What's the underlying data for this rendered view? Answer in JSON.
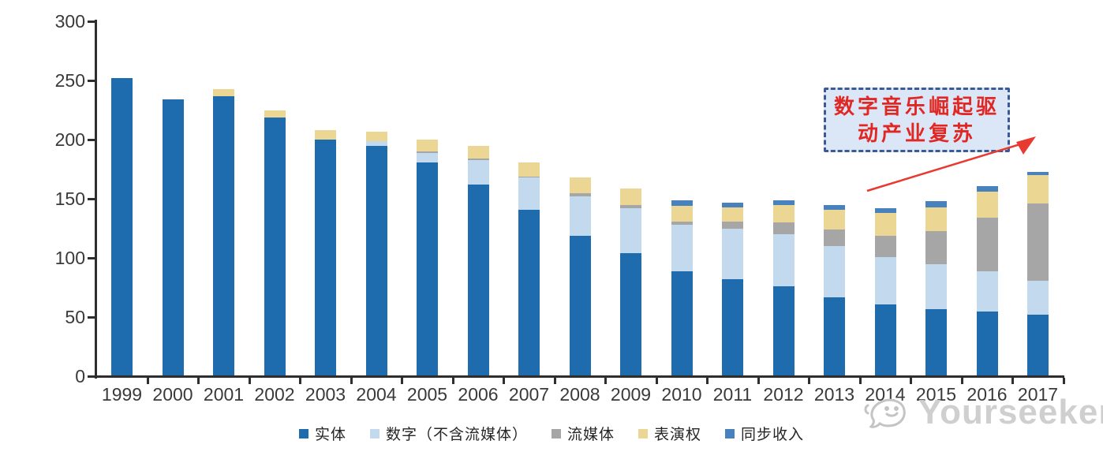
{
  "chart_data": {
    "type": "bar",
    "stacked": true,
    "title": "",
    "xlabel": "",
    "ylabel": "",
    "grid": false,
    "legend_position": "bottom",
    "ylim": [
      0,
      300
    ],
    "yticks": [
      0,
      50,
      100,
      150,
      200,
      250,
      300
    ],
    "categories": [
      "1999",
      "2000",
      "2001",
      "2002",
      "2003",
      "2004",
      "2005",
      "2006",
      "2007",
      "2008",
      "2009",
      "2010",
      "2011",
      "2012",
      "2013",
      "2014",
      "2015",
      "2016",
      "2017"
    ],
    "series": [
      {
        "name": "实体",
        "color": "#1E6CAD",
        "values": [
          252,
          234,
          237,
          219,
          200,
          195,
          181,
          162,
          141,
          119,
          104,
          89,
          82,
          76,
          67,
          61,
          57,
          55,
          52
        ]
      },
      {
        "name": "数字（不含流媒体）",
        "color": "#C3D9EE",
        "values": [
          0,
          0,
          0,
          0,
          0,
          4,
          8,
          21,
          27,
          33,
          38,
          39,
          43,
          44,
          43,
          40,
          38,
          34,
          29
        ]
      },
      {
        "name": "流媒体",
        "color": "#A6A6A6",
        "values": [
          0,
          0,
          0,
          0,
          0,
          0,
          1,
          1,
          1,
          3,
          3,
          3,
          6,
          10,
          14,
          18,
          28,
          45,
          65
        ]
      },
      {
        "name": "表演权",
        "color": "#EBD793",
        "values": [
          0,
          0,
          6,
          6,
          8,
          8,
          10,
          11,
          12,
          13,
          14,
          13,
          12,
          15,
          17,
          19,
          20,
          22,
          24
        ]
      },
      {
        "name": "同步收入",
        "color": "#4781BE",
        "values": [
          0,
          0,
          0,
          0,
          0,
          0,
          0,
          0,
          0,
          0,
          0,
          5,
          4,
          4,
          4,
          4,
          5,
          5,
          3
        ]
      }
    ],
    "totals": [
      252,
      234,
      243,
      225,
      208,
      207,
      200,
      195,
      181,
      168,
      159,
      149,
      147,
      149,
      145,
      142,
      148,
      161,
      173
    ]
  },
  "annotation": {
    "text": "数字音乐崛起驱动产业复苏",
    "line1": "数字音乐崛起驱",
    "line2": "动产业复苏",
    "text_color": "#e02723",
    "box_border_color": "#3b5a97",
    "box_fill_color": "#dbe7f6",
    "arrow_color": "#e83a30"
  },
  "watermark": {
    "brand": "Yourseeker",
    "color": "#cbcbcb"
  }
}
